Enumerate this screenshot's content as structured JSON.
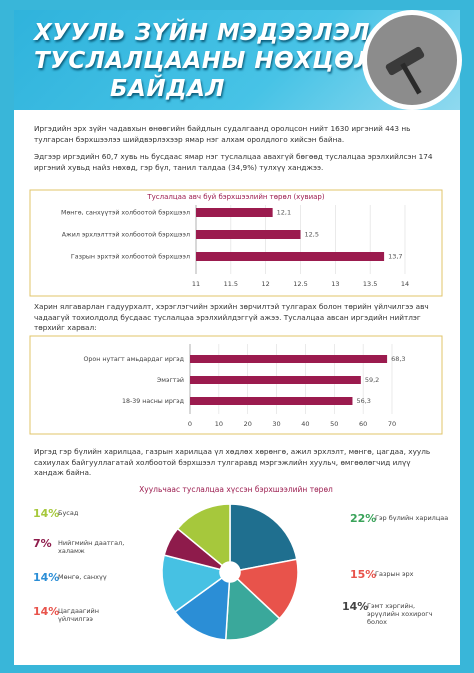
{
  "header": {
    "title_lines": [
      "ХУУЛЬ ЗҮЙН МЭДЭЭЛЭЛ,",
      "ТУСЛАЛЦААНЫ НӨХЦӨЛ",
      "БАЙДАЛ"
    ]
  },
  "paragraphs": [
    "Иргэдийн эрх зүйн чадавхын өнөөгийн байдлын судалгаанд оролцсон нийт 1630 иргэний 443 нь тулгарсан бэрхшээлээ шийдвэрлэхээр ямар нэг алхам оролдлого хийсэн байна.",
    "Эдгээр иргэдийн 60,7 хувь нь бусдаас ямар нэг туслалцаа авахгүй бөгөөд туслалцаа эрэлхийлсэн 174 иргэний хувьд найз нөхөд, гэр бүл, танил талдаа (34,9%) тулхүү ханджээ.",
    "Харин ялгаварлан гадуурхалт, хэрэглэгчийн эрхийн зөрчилтэй тулгарах болон төрийн үйлчилгээ авч чадаагүй тохиолдолд бусдаас туслалцаа эрэлхийлдэггүй ажээ. Туслалцаа авсан иргэдийн нийтлэг төрхийг харвал:",
    "Иргэд гэр бүлийн харилцаа, газрын харилцаа үл хөдлөх хөрөнгө, ажил эрхлэлт, мөнгө, цагдаа, хууль сахиулах байгууллагатай холбоотой бэрхшээл тулгаравд мэргэжлийн хуульч, өмгөөлөгчид илүү хандаж байна."
  ],
  "chart_data": [
    {
      "type": "hbar",
      "title": "Туслалцаа авч буй бэрхшээлийн төрөл (хувиар)",
      "categories": [
        "Мөнгө, санхүүтэй холбоотой бэрхшээл",
        "Ажил эрхлэлттэй холбоотой бэрхшээл",
        "Газрын эрхтэй холбоотой бэрхшээл"
      ],
      "values": [
        12.1,
        12.5,
        13.7
      ],
      "value_labels": [
        "12,1",
        "12,5",
        "13,7"
      ],
      "color": "#9b1b4e",
      "xlim": [
        11,
        14
      ],
      "xticks": [
        11,
        11.5,
        12,
        12.5,
        13,
        13.5,
        14
      ],
      "grid": true
    },
    {
      "type": "hbar",
      "categories": [
        "Орон нутагт амьдардаг иргэд",
        "Эмэгтэй",
        "18-39 насны иргэд"
      ],
      "values": [
        68.3,
        59.2,
        56.3
      ],
      "value_labels": [
        "68,3",
        "59,2",
        "56,3"
      ],
      "color": "#9b1b4e",
      "xlim": [
        0,
        70
      ],
      "xticks": [
        0,
        10,
        20,
        30,
        40,
        50,
        60,
        70
      ],
      "grid": true
    },
    {
      "type": "pie",
      "title": "Хуульчаас туслалцаа хүссэн бэрхшээлийн төрөл",
      "categories": [
        "Гэр бүлийн харилцаа",
        "Газрын эрх",
        "Гэмт хэргийн, эрүүлийн хохирогч болох",
        "Цагдаагийн үйлчилгээ",
        "Мөнгө, санхүү",
        "Нийгмийн даатгал, халамж",
        "Бусад"
      ],
      "values": [
        22,
        15,
        14,
        14,
        14,
        7,
        14
      ],
      "value_labels": [
        "22%",
        "15%",
        "14%",
        "14%",
        "14%",
        "7%",
        "14%"
      ],
      "colors": [
        "#1f6f8f",
        "#e8534b",
        "#3aa89b",
        "#2b8ed6",
        "#46c1e3",
        "#8e1b4b",
        "#a6c83c"
      ],
      "label_colors": [
        "#3aa35a",
        "#e8534b",
        "#444444",
        "#e8534b",
        "#2b8ed6",
        "#8e1b4b",
        "#a6c83c"
      ]
    }
  ]
}
